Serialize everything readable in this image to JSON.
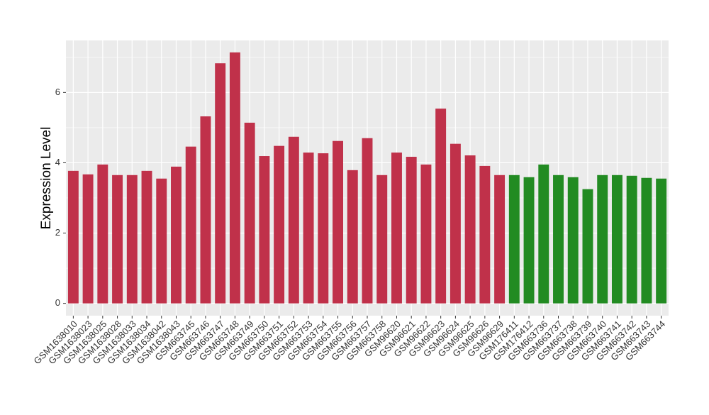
{
  "chart_data": {
    "type": "bar",
    "ylabel": "Expression Level",
    "categories": [
      "GSM1638010",
      "GSM1638023",
      "GSM1638025",
      "GSM1638028",
      "GSM1638033",
      "GSM1638034",
      "GSM1638042",
      "GSM1638043",
      "GSM663745",
      "GSM663746",
      "GSM663747",
      "GSM663748",
      "GSM663749",
      "GSM663750",
      "GSM663751",
      "GSM663752",
      "GSM663753",
      "GSM663754",
      "GSM663755",
      "GSM663756",
      "GSM663757",
      "GSM663758",
      "GSM96620",
      "GSM96621",
      "GSM96622",
      "GSM96623",
      "GSM96624",
      "GSM96625",
      "GSM96626",
      "GSM96629",
      "GSM176411",
      "GSM176412",
      "GSM663736",
      "GSM663737",
      "GSM663738",
      "GSM663739",
      "GSM663740",
      "GSM663741",
      "GSM663742",
      "GSM663743",
      "GSM663744"
    ],
    "values": [
      3.77,
      3.67,
      3.95,
      3.65,
      3.65,
      3.77,
      3.55,
      3.89,
      4.46,
      5.32,
      6.83,
      7.14,
      5.14,
      4.19,
      4.48,
      4.74,
      4.29,
      4.27,
      4.62,
      3.79,
      4.7,
      3.65,
      4.29,
      4.17,
      3.95,
      5.54,
      4.54,
      4.21,
      3.91,
      3.65,
      3.65,
      3.59,
      3.95,
      3.65,
      3.59,
      3.25,
      3.65,
      3.65,
      3.63,
      3.57,
      3.55
    ],
    "colors": [
      "#c0314a",
      "#c0314a",
      "#c0314a",
      "#c0314a",
      "#c0314a",
      "#c0314a",
      "#c0314a",
      "#c0314a",
      "#c0314a",
      "#c0314a",
      "#c0314a",
      "#c0314a",
      "#c0314a",
      "#c0314a",
      "#c0314a",
      "#c0314a",
      "#c0314a",
      "#c0314a",
      "#c0314a",
      "#c0314a",
      "#c0314a",
      "#c0314a",
      "#c0314a",
      "#c0314a",
      "#c0314a",
      "#c0314a",
      "#c0314a",
      "#c0314a",
      "#c0314a",
      "#c0314a",
      "#228b22",
      "#228b22",
      "#228b22",
      "#228b22",
      "#228b22",
      "#228b22",
      "#228b22",
      "#228b22",
      "#228b22",
      "#228b22",
      "#228b22"
    ],
    "ylim": [
      -0.35,
      7.48
    ],
    "yticks": [
      0,
      2,
      4,
      6
    ],
    "grid": true
  }
}
